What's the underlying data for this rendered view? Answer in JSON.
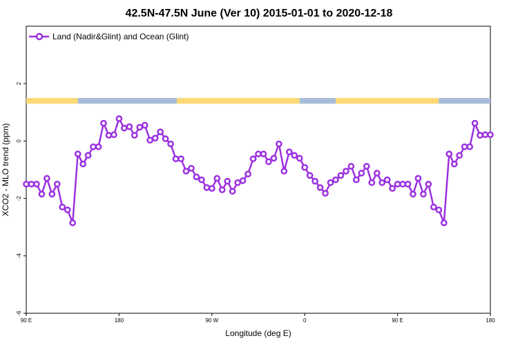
{
  "chart_data": {
    "type": "line",
    "title": "42.5N-47.5N June (Ver 10)   2015-01-01 to 2020-12-18",
    "xlabel": "Longitude (deg E)",
    "ylabel": "XCO2 - MLO trend (ppm)",
    "xlim": [
      90,
      540
    ],
    "ylim": [
      -6,
      4
    ],
    "x_ticks": [
      {
        "value": 90,
        "label": "90 E"
      },
      {
        "value": 180,
        "label": "180"
      },
      {
        "value": 270,
        "label": "90 W"
      },
      {
        "value": 360,
        "label": "0"
      },
      {
        "value": 450,
        "label": "90 E"
      },
      {
        "value": 540,
        "label": "180"
      }
    ],
    "y_ticks": [
      {
        "value": -6,
        "label": "-6"
      },
      {
        "value": -4,
        "label": "-4"
      },
      {
        "value": -2,
        "label": "-2"
      },
      {
        "value": 0,
        "label": "0"
      },
      {
        "value": 2,
        "label": "2"
      }
    ],
    "grid": false,
    "legend_position": "top-left",
    "surface_strip": {
      "y_range": [
        1.3,
        1.5
      ],
      "land_color": "#fcd877",
      "ocean_color": "#a7bcd9",
      "segments": [
        {
          "type": "land",
          "x": [
            90,
            140
          ]
        },
        {
          "type": "ocean",
          "x": [
            140,
            236
          ]
        },
        {
          "type": "land",
          "x": [
            236,
            355
          ]
        },
        {
          "type": "ocean",
          "x": [
            355,
            390
          ]
        },
        {
          "type": "land",
          "x": [
            390,
            490
          ]
        },
        {
          "type": "ocean",
          "x": [
            490,
            540
          ]
        }
      ]
    },
    "series": [
      {
        "name": "Land (Nadir&Glint) and Ocean (Glint)",
        "color": "#9b30e0",
        "x": [
          90,
          95,
          100,
          105,
          110,
          115,
          120,
          125,
          130,
          135,
          140,
          145,
          150,
          155,
          160,
          165,
          170,
          175,
          180,
          185,
          190,
          195,
          200,
          205,
          210,
          215,
          220,
          225,
          230,
          235,
          240,
          245,
          250,
          255,
          260,
          265,
          270,
          275,
          280,
          285,
          290,
          295,
          300,
          305,
          310,
          315,
          320,
          325,
          330,
          335,
          340,
          345,
          350,
          355,
          360,
          365,
          370,
          375,
          380,
          385,
          390,
          395,
          400,
          405,
          410,
          415,
          420,
          425,
          430,
          435,
          440,
          445,
          450,
          455,
          460,
          465,
          470,
          475,
          480,
          485,
          490,
          495,
          500,
          505,
          510,
          515,
          520,
          525,
          530,
          535,
          540
        ],
        "y": [
          -1.5,
          -1.5,
          -1.5,
          -1.85,
          -1.3,
          -1.85,
          -1.5,
          -2.3,
          -2.4,
          -2.85,
          -0.45,
          -0.8,
          -0.5,
          -0.2,
          -0.2,
          0.62,
          0.2,
          0.22,
          0.78,
          0.45,
          0.5,
          0.2,
          0.48,
          0.55,
          0.03,
          0.1,
          0.32,
          0.08,
          -0.1,
          -0.62,
          -0.62,
          -1.05,
          -0.95,
          -1.25,
          -1.35,
          -1.62,
          -1.65,
          -1.3,
          -1.7,
          -1.4,
          -1.75,
          -1.45,
          -1.38,
          -1.15,
          -0.62,
          -0.45,
          -0.45,
          -0.72,
          -0.6,
          -0.1,
          -1.05,
          -0.38,
          -0.5,
          -0.6,
          -0.92,
          -1.2,
          -1.4,
          -1.62,
          -1.82,
          -1.45,
          -1.35,
          -1.2,
          -1.05,
          -0.88,
          -1.35,
          -1.12,
          -0.88,
          -1.45,
          -1.12,
          -1.45,
          -1.35,
          -1.65,
          -1.5,
          -1.5,
          -1.5,
          -1.85,
          -1.3,
          -1.85,
          -1.5,
          -2.3,
          -2.4,
          -2.85,
          -0.45,
          -0.8,
          -0.5,
          -0.2,
          -0.2,
          0.62,
          0.2,
          0.22,
          0.22
        ]
      }
    ]
  }
}
